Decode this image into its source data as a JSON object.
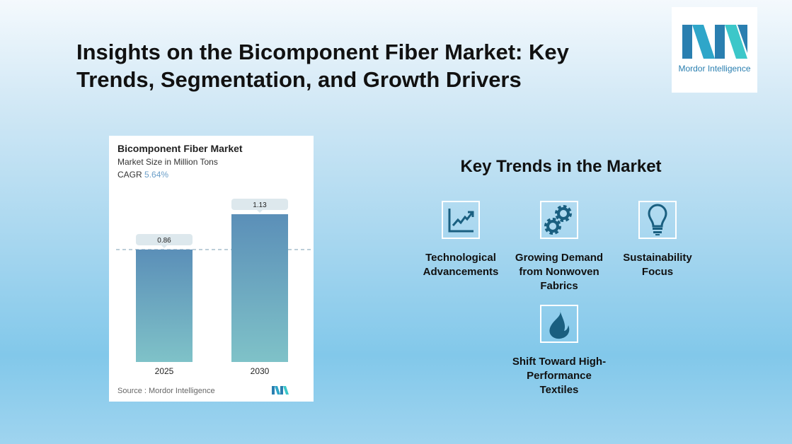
{
  "title": "Insights on the Bicomponent Fiber Market: Key Trends, Segmentation, and Growth Drivers",
  "logo": {
    "text": "Mordor Intelligence"
  },
  "chart_data": {
    "type": "bar",
    "title": "Bicomponent Fiber Market",
    "subtitle": "Market Size in Million Tons",
    "cagr_label": "CAGR",
    "cagr_value": "5.64%",
    "categories": [
      "2025",
      "2030"
    ],
    "values": [
      0.86,
      1.13
    ],
    "value_labels": [
      "0.86",
      "1.13"
    ],
    "ylim": [
      0,
      1.13
    ],
    "source": "Source :  Mordor Intelligence",
    "colors": {
      "top": "#5b8fb8",
      "bottom": "#7fc2c8"
    }
  },
  "trends": {
    "heading": "Key Trends in the Market",
    "items": [
      {
        "label": "Technological Advancements",
        "icon": "chart-growth-icon"
      },
      {
        "label": "Growing Demand from Nonwoven Fabrics",
        "icon": "gears-icon"
      },
      {
        "label": "Sustainability Focus",
        "icon": "lightbulb-icon"
      },
      {
        "label": "Shift Toward High-Performance Textiles",
        "icon": "flame-icon"
      }
    ]
  }
}
